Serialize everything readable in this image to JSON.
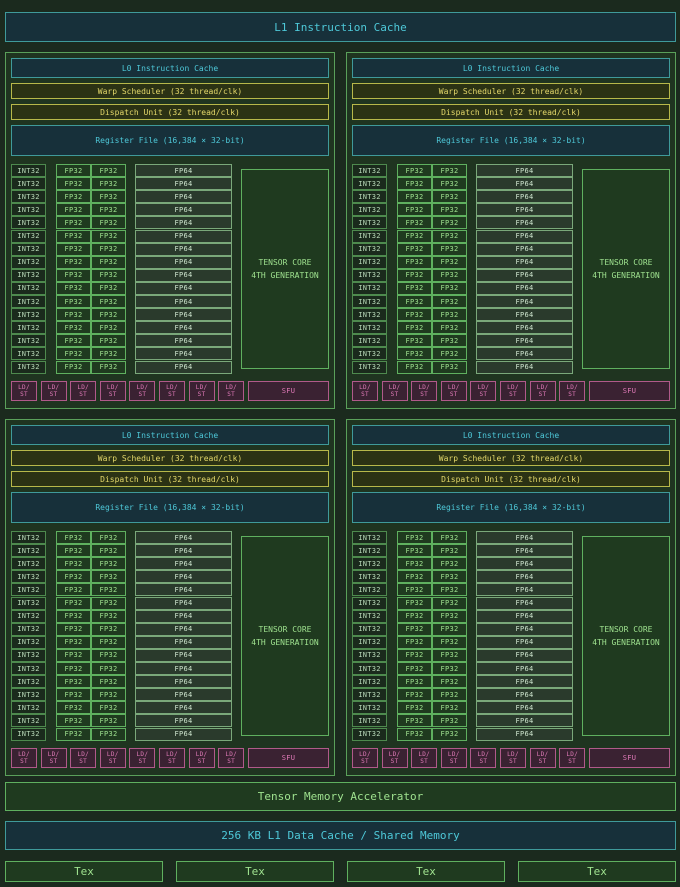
{
  "l1_instruction_cache": "L1 Instruction Cache",
  "sm_quadrant": {
    "l0_cache": "L0 Instruction Cache",
    "warp_scheduler": "Warp Scheduler (32 thread/clk)",
    "dispatch_unit": "Dispatch Unit (32 thread/clk)",
    "register_file": "Register File (16,384 × 32-bit)",
    "int32_label": "INT32",
    "fp32_label": "FP32",
    "fp64_label": "FP64",
    "tensor_core_line1": "TENSOR CORE",
    "tensor_core_line2": "4TH GENERATION",
    "ldst_line1": "LD/",
    "ldst_line2": "ST",
    "sfu_label": "SFU",
    "rows": 16,
    "ldst_units": 8
  },
  "tensor_memory_accelerator": "Tensor Memory Accelerator",
  "l1_data_cache": "256 KB L1 Data Cache / Shared Memory",
  "tex_units": [
    "Tex",
    "Tex",
    "Tex",
    "Tex"
  ]
}
